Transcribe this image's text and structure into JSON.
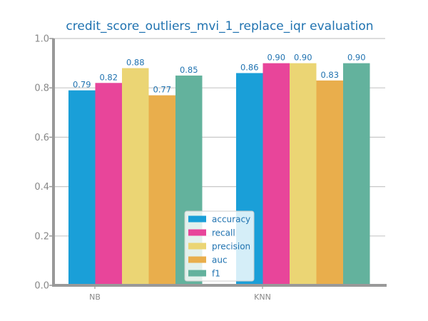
{
  "chart_data": {
    "type": "bar",
    "title": "credit_score_outliers_mvi_1_replace_iqr evaluation",
    "xlabel": "",
    "ylabel": "",
    "categories": [
      "NB",
      "KNN"
    ],
    "series": [
      {
        "name": "accuracy",
        "values": [
          0.79,
          0.86
        ],
        "labels": [
          "0.79",
          "0.86"
        ],
        "color": "#1a9fd8"
      },
      {
        "name": "recall",
        "values": [
          0.82,
          0.9
        ],
        "labels": [
          "0.82",
          "0.90"
        ],
        "color": "#e8459a"
      },
      {
        "name": "precision",
        "values": [
          0.88,
          0.9
        ],
        "labels": [
          "0.88",
          "0.90"
        ],
        "color": "#ebd574"
      },
      {
        "name": "auc",
        "values": [
          0.77,
          0.83
        ],
        "labels": [
          "0.77",
          "0.83"
        ],
        "color": "#e9ae4c"
      },
      {
        "name": "f1",
        "values": [
          0.85,
          0.9
        ],
        "labels": [
          "0.85",
          "0.90"
        ],
        "color": "#63b29d"
      }
    ],
    "ylim": [
      0,
      1
    ],
    "yticks": [
      "0.0",
      "0.2",
      "0.4",
      "0.6",
      "0.8",
      "1.0"
    ],
    "grid": true,
    "legend_position": "bottom-center",
    "colors": {
      "text_accent": "#1f72b0",
      "axis": "#999999",
      "grid": "#c8c8c8",
      "tick_text": "#888888"
    }
  }
}
